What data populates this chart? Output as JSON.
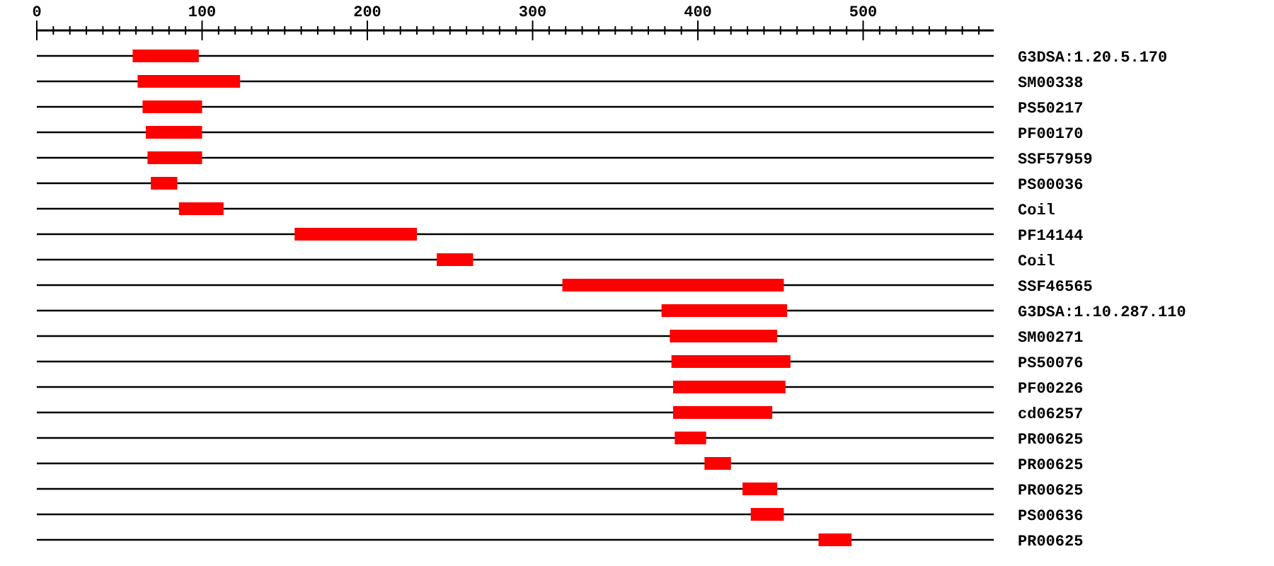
{
  "chart_data": {
    "type": "bar",
    "orientation": "horizontal",
    "color": "#ff0000",
    "grid": "y",
    "categories": [
      "G3DSA:1.20.5.170",
      "SM00338",
      "PS50217",
      "PF00170",
      "SSF57959",
      "PS00036",
      "Coil",
      "PF14144",
      "Coil",
      "SSF46565",
      "G3DSA:1.10.287.110",
      "SM00271",
      "PS50076",
      "PF00226",
      "cd06257",
      "PR00625",
      "PR00625",
      "PR00625",
      "PS00636",
      "PR00625"
    ],
    "base": [
      58,
      61,
      64,
      66,
      67,
      69,
      86,
      156,
      242,
      318,
      378,
      383,
      384,
      385,
      385,
      386,
      404,
      427,
      432,
      473
    ],
    "values": [
      40,
      62,
      36,
      34,
      33,
      16,
      27,
      74,
      22,
      134,
      76,
      65,
      72,
      68,
      60,
      19,
      16,
      21,
      20,
      20
    ],
    "xlim": [
      0,
      579
    ],
    "xticks": [
      0,
      {
        "value": 10,
        "label": null
      },
      {
        "value": 20,
        "label": null
      },
      {
        "value": 30,
        "label": null
      },
      {
        "value": 40,
        "label": null
      },
      {
        "value": 50,
        "label": null
      },
      {
        "value": 60,
        "label": null
      },
      {
        "value": 70,
        "label": null
      },
      {
        "value": 80,
        "label": null
      },
      {
        "value": 90,
        "label": null
      },
      100,
      {
        "value": 110,
        "label": null
      },
      {
        "value": 120,
        "label": null
      },
      {
        "value": 130,
        "label": null
      },
      {
        "value": 140,
        "label": null
      },
      {
        "value": 150,
        "label": null
      },
      {
        "value": 160,
        "label": null
      },
      {
        "value": 170,
        "label": null
      },
      {
        "value": 180,
        "label": null
      },
      {
        "value": 190,
        "label": null
      },
      200,
      {
        "value": 210,
        "label": null
      },
      {
        "value": 220,
        "label": null
      },
      {
        "value": 230,
        "label": null
      },
      {
        "value": 240,
        "label": null
      },
      {
        "value": 250,
        "label": null
      },
      {
        "value": 260,
        "label": null
      },
      {
        "value": 270,
        "label": null
      },
      {
        "value": 280,
        "label": null
      },
      {
        "value": 290,
        "label": null
      },
      300,
      {
        "value": 310,
        "label": null
      },
      {
        "value": 320,
        "label": null
      },
      {
        "value": 330,
        "label": null
      },
      {
        "value": 340,
        "label": null
      },
      {
        "value": 350,
        "label": null
      },
      {
        "value": 360,
        "label": null
      },
      {
        "value": 370,
        "label": null
      },
      {
        "value": 380,
        "label": null
      },
      {
        "value": 390,
        "label": null
      },
      400,
      {
        "value": 410,
        "label": null
      },
      {
        "value": 420,
        "label": null
      },
      {
        "value": 430,
        "label": null
      },
      {
        "value": 440,
        "label": null
      },
      {
        "value": 450,
        "label": null
      },
      {
        "value": 460,
        "label": null
      },
      {
        "value": 470,
        "label": null
      },
      {
        "value": 480,
        "label": null
      },
      {
        "value": 490,
        "label": null
      },
      500,
      {
        "value": 510,
        "label": null
      },
      {
        "value": 520,
        "label": null
      },
      {
        "value": 530,
        "label": null
      },
      {
        "value": 540,
        "label": null
      },
      {
        "value": 550,
        "label": null
      },
      {
        "value": 560,
        "label": null
      },
      {
        "value": 570,
        "label": null
      }
    ]
  }
}
